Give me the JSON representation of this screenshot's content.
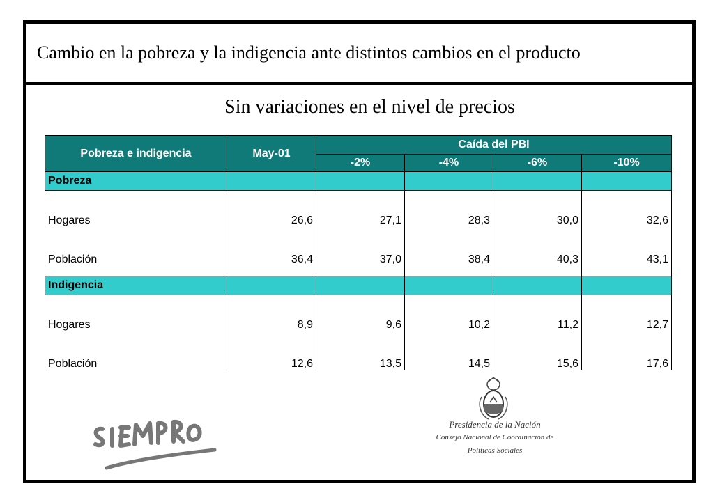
{
  "title": "Cambio en la pobreza y la indigencia ante distintos cambios en el producto",
  "subtitle": "Sin variaciones en el nivel de precios",
  "table": {
    "header": {
      "col_label": "Pobreza e indigencia",
      "col_base": "May-01",
      "group_label": "Caída del PBI",
      "scenarios": [
        "-2%",
        "-4%",
        "-6%",
        "-10%"
      ]
    },
    "sections": [
      {
        "name": "Pobreza",
        "rows": [
          {
            "label": "Hogares",
            "values": [
              "26,6",
              "27,1",
              "28,3",
              "30,0",
              "32,6"
            ]
          },
          {
            "label": "Población",
            "values": [
              "36,4",
              "37,0",
              "38,4",
              "40,3",
              "43,1"
            ]
          }
        ]
      },
      {
        "name": "Indigencia",
        "rows": [
          {
            "label": "Hogares",
            "values": [
              "8,9",
              "9,6",
              "10,2",
              "11,2",
              "12,7"
            ]
          },
          {
            "label": "Población",
            "values": [
              "12,6",
              "13,5",
              "14,5",
              "15,6",
              "17,6"
            ]
          }
        ]
      }
    ]
  },
  "footer": {
    "left_logo": "SIEMPRO",
    "gov_line1": "Presidencia de la Nación",
    "gov_line2": "Consejo Nacional de Coordinación de",
    "gov_line3": "Políticas Sociales"
  },
  "colors": {
    "header_bg": "#0f7a78",
    "section_bg": "#33cccc"
  }
}
